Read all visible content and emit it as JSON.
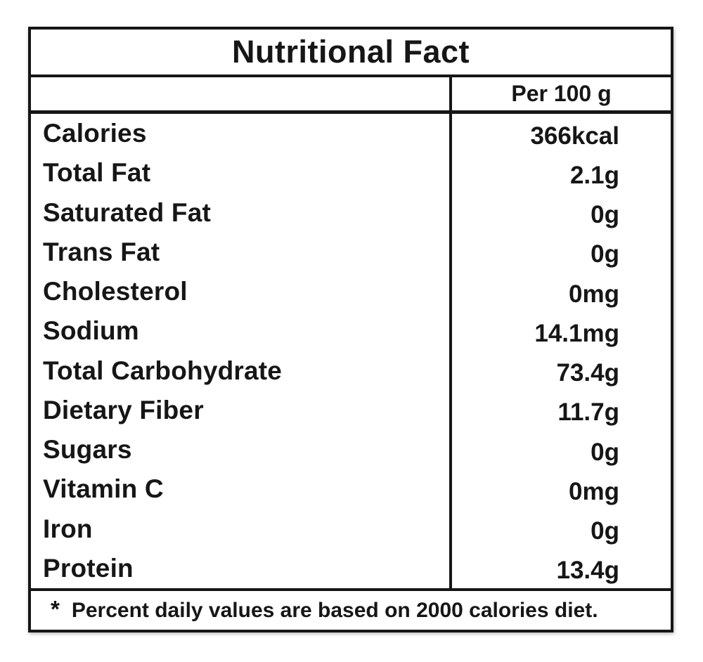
{
  "title": "Nutritional Fact",
  "header": {
    "amount_column": "Per 100 g"
  },
  "rows": [
    {
      "label": "Calories",
      "value": "366kcal"
    },
    {
      "label": "Total Fat",
      "value": "2.1g"
    },
    {
      "label": "Saturated Fat",
      "value": "0g"
    },
    {
      "label": "Trans Fat",
      "value": "0g"
    },
    {
      "label": "Cholesterol",
      "value": "0mg"
    },
    {
      "label": "Sodium",
      "value": "14.1mg"
    },
    {
      "label": "Total Carbohydrate",
      "value": "73.4g"
    },
    {
      "label": "Dietary Fiber",
      "value": "11.7g"
    },
    {
      "label": "Sugars",
      "value": "0g"
    },
    {
      "label": "Vitamin C",
      "value": "0mg"
    },
    {
      "label": "Iron",
      "value": "0g"
    },
    {
      "label": "Protein",
      "value": "13.4g"
    }
  ],
  "footnote": {
    "marker": "*",
    "text": "Percent daily values are based on 2000 calories diet."
  },
  "colors": {
    "text": "#161616",
    "border": "#161616",
    "background": "#ffffff"
  }
}
